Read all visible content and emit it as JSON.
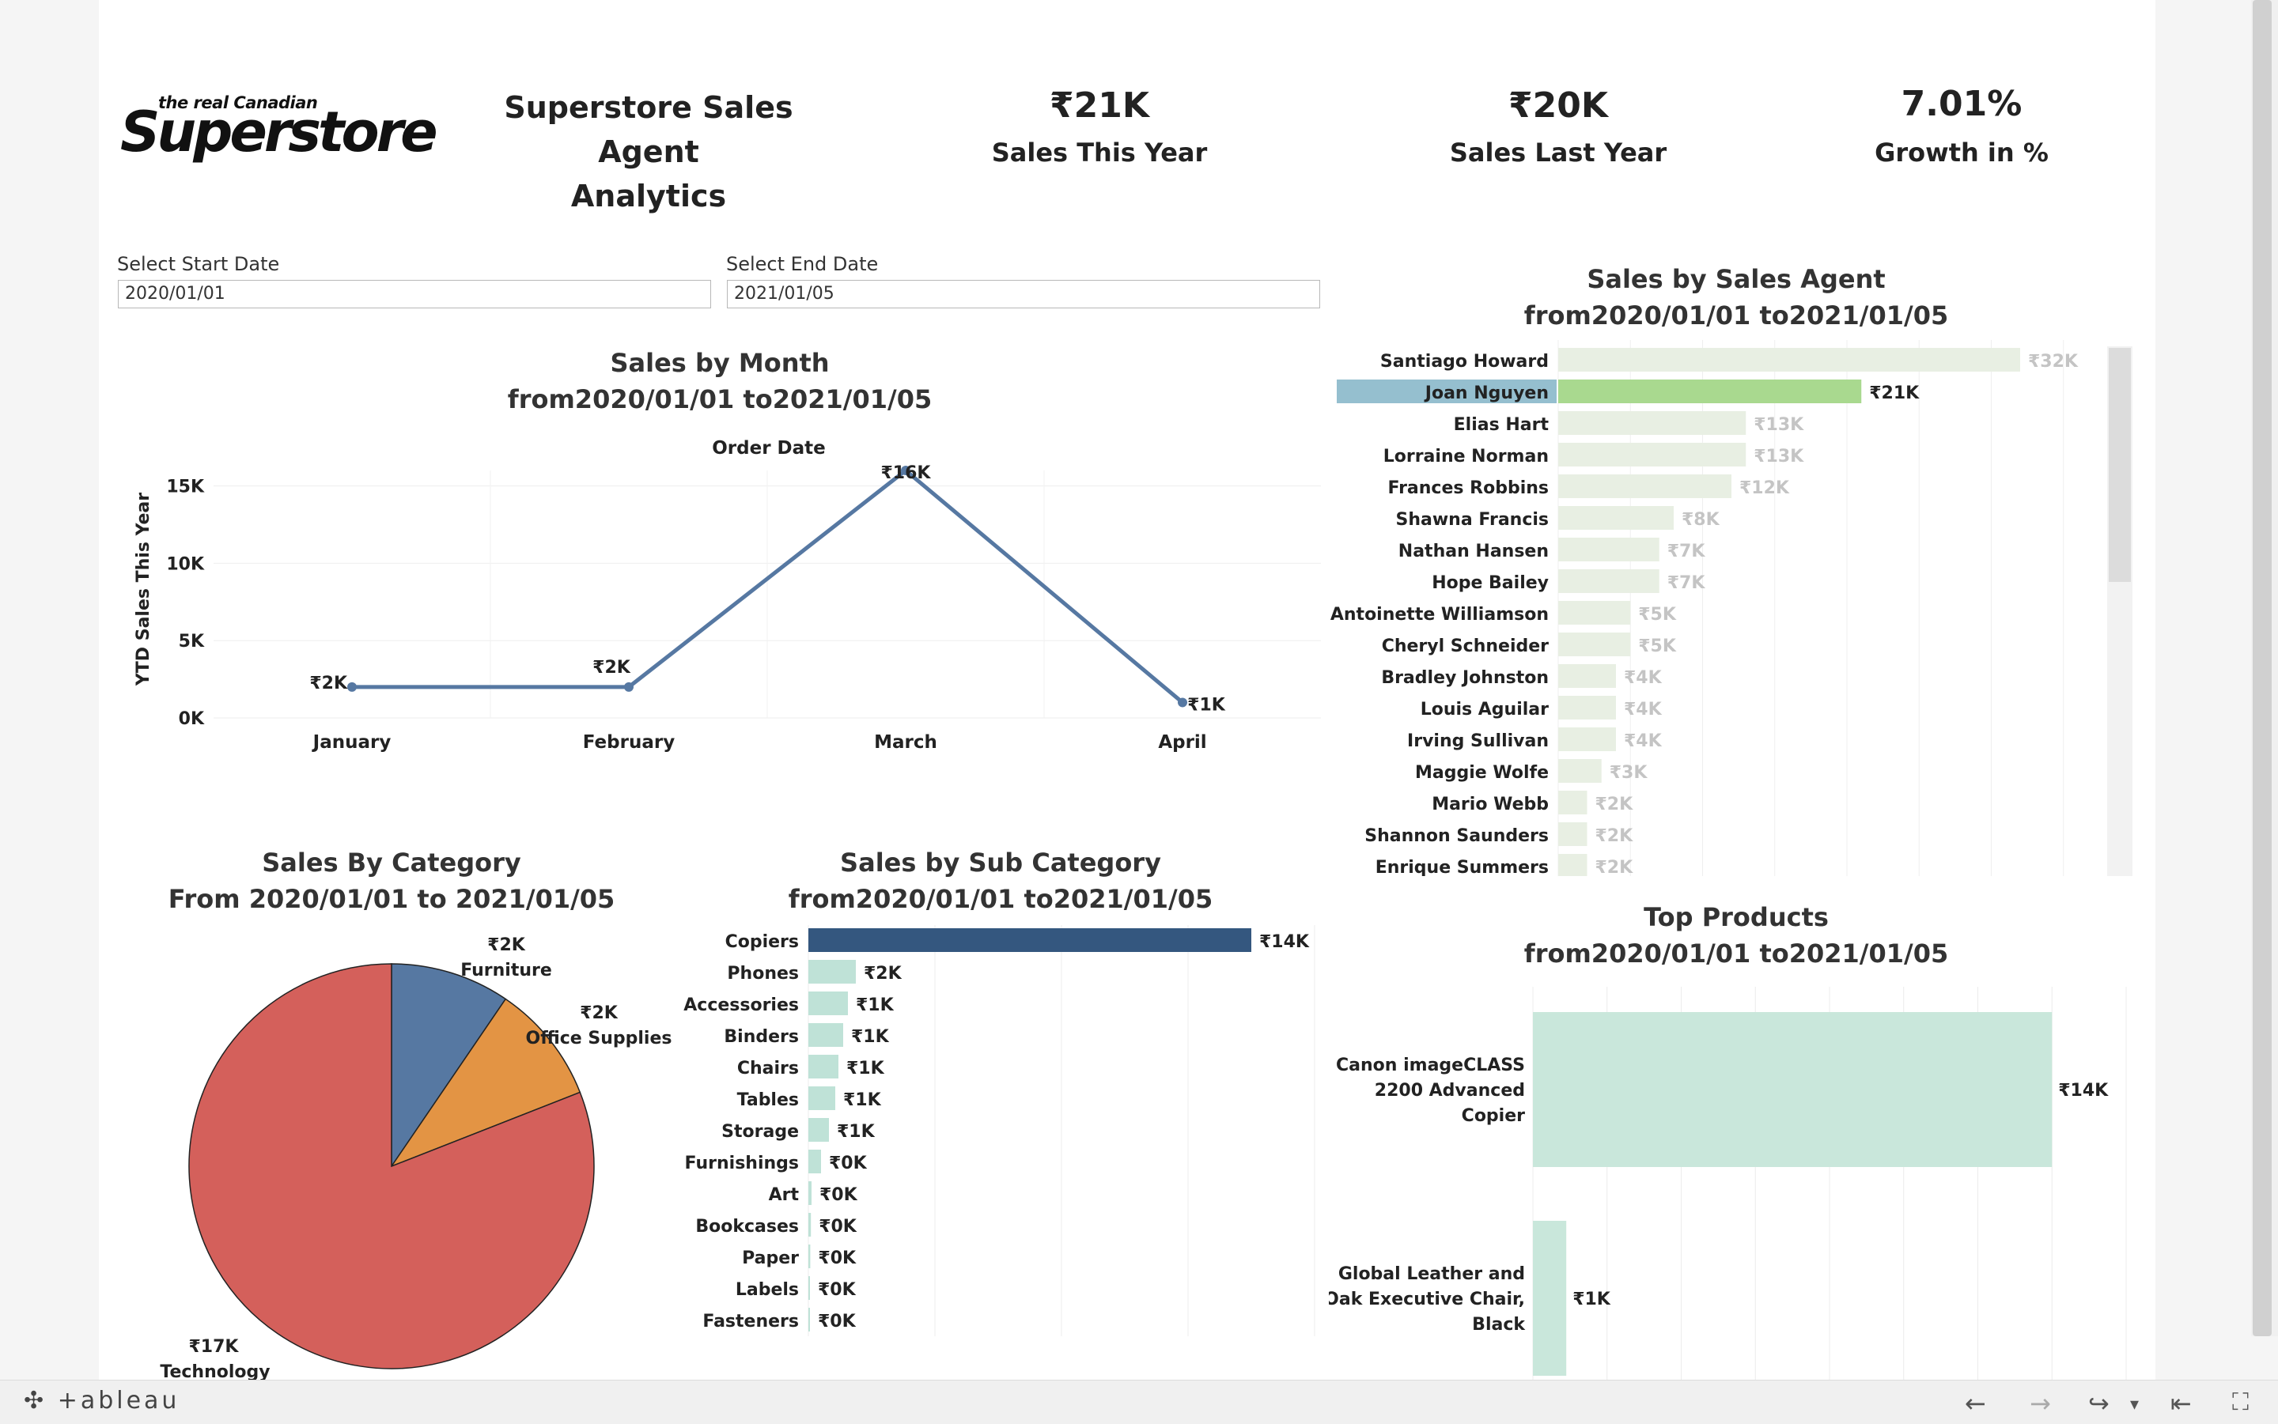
{
  "header": {
    "logo_small": "the real Canadian",
    "logo_big": "Superstore",
    "title_line1": "Superstore Sales Agent",
    "title_line2": "Analytics"
  },
  "kpis": [
    {
      "value": "₹21K",
      "label": "Sales This Year"
    },
    {
      "value": "₹20K",
      "label": "Sales Last Year"
    },
    {
      "value": "7.01%",
      "label": "Growth in %"
    }
  ],
  "filters": {
    "start_label": "Select Start Date",
    "start_value": "2020/01/01",
    "end_label": "Select End Date",
    "end_value": "2021/01/05"
  },
  "month_chart": {
    "title_line1": "Sales by Month",
    "title_line2": "from2020/01/01 to2021/01/05",
    "header": "Order Date",
    "ylabel": "YTD Sales This Year",
    "ticks": [
      "15K",
      "10K",
      "5K",
      "0K"
    ]
  },
  "category_chart": {
    "title_line1": "Sales By Category",
    "title_line2": "From 2020/01/01 to 2021/01/05"
  },
  "subcat_chart": {
    "title_line1": "Sales by Sub Category",
    "title_line2": "from2020/01/01 to2021/01/05"
  },
  "agent_chart": {
    "title_line1": "Sales by Sales Agent",
    "title_line2": "from2020/01/01 to2021/01/05"
  },
  "products_chart": {
    "title_line1": "Top Products",
    "title_line2": "from2020/01/01 to2021/01/05"
  },
  "footer": {
    "brand": "+ableau"
  },
  "colors": {
    "line": "#5678a2",
    "pie_technology": "#d4605b",
    "pie_furniture": "#5678a2",
    "pie_office": "#e39444",
    "subcat_highlight": "#34577f",
    "subcat_bar": "#bfe2d7",
    "agent_bar": "#e8efe3",
    "agent_selected": "#a9d98f",
    "agent_selected_bg": "#95bfcf",
    "product_bar": "#c9e7db"
  },
  "chart_data": [
    {
      "type": "line",
      "categories": [
        "January",
        "February",
        "March",
        "April"
      ],
      "values": [
        2,
        2,
        16,
        1
      ],
      "data_labels": [
        "₹2K",
        "₹2K",
        "₹16K",
        "₹1K"
      ],
      "ylim": [
        0,
        16
      ]
    },
    {
      "type": "pie",
      "categories": [
        "Furniture",
        "Office Supplies",
        "Technology"
      ],
      "values": [
        2,
        2,
        17
      ],
      "data_labels": [
        "₹2K",
        "₹2K",
        "₹17K"
      ]
    },
    {
      "type": "bar",
      "categories": [
        "Copiers",
        "Phones",
        "Accessories",
        "Binders",
        "Chairs",
        "Tables",
        "Storage",
        "Furnishings",
        "Art",
        "Bookcases",
        "Paper",
        "Labels",
        "Fasteners"
      ],
      "values": [
        14,
        1.5,
        1.25,
        1.1,
        0.95,
        0.85,
        0.65,
        0.4,
        0.1,
        0.08,
        0.06,
        0.04,
        0.03
      ],
      "data_labels": [
        "₹14K",
        "₹2K",
        "₹1K",
        "₹1K",
        "₹1K",
        "₹1K",
        "₹1K",
        "₹0K",
        "₹0K",
        "₹0K",
        "₹0K",
        "₹0K",
        "₹0K"
      ],
      "xlim": [
        0,
        16
      ]
    },
    {
      "type": "bar",
      "categories": [
        "Santiago Howard",
        "Joan Nguyen",
        "Elias Hart",
        "Lorraine Norman",
        "Frances Robbins",
        "Shawna Francis",
        "Nathan Hansen",
        "Hope Bailey",
        "Antoinette Williamson",
        "Cheryl Schneider",
        "Bradley Johnston",
        "Louis Aguilar",
        "Irving Sullivan",
        "Maggie Wolfe",
        "Mario Webb",
        "Shannon Saunders",
        "Enrique Summers"
      ],
      "values": [
        32,
        21,
        13,
        13,
        12,
        8,
        7,
        7,
        5,
        5,
        4,
        4,
        4,
        3,
        2,
        2,
        2
      ],
      "data_labels": [
        "₹32K",
        "₹21K",
        "₹13K",
        "₹13K",
        "₹12K",
        "₹8K",
        "₹7K",
        "₹7K",
        "₹5K",
        "₹5K",
        "₹4K",
        "₹4K",
        "₹4K",
        "₹3K",
        "₹2K",
        "₹2K",
        "₹2K"
      ],
      "selected": "Joan Nguyen",
      "xlim": [
        0,
        40
      ]
    },
    {
      "type": "bar",
      "categories": [
        [
          "Canon imageCLASS",
          "2200 Advanced",
          "Copier"
        ],
        [
          "Global Leather and",
          "Oak Executive Chair,",
          "Black"
        ]
      ],
      "values": [
        14,
        0.9
      ],
      "data_labels": [
        "₹14K",
        "₹1K"
      ],
      "xlim": [
        0,
        16
      ]
    }
  ]
}
